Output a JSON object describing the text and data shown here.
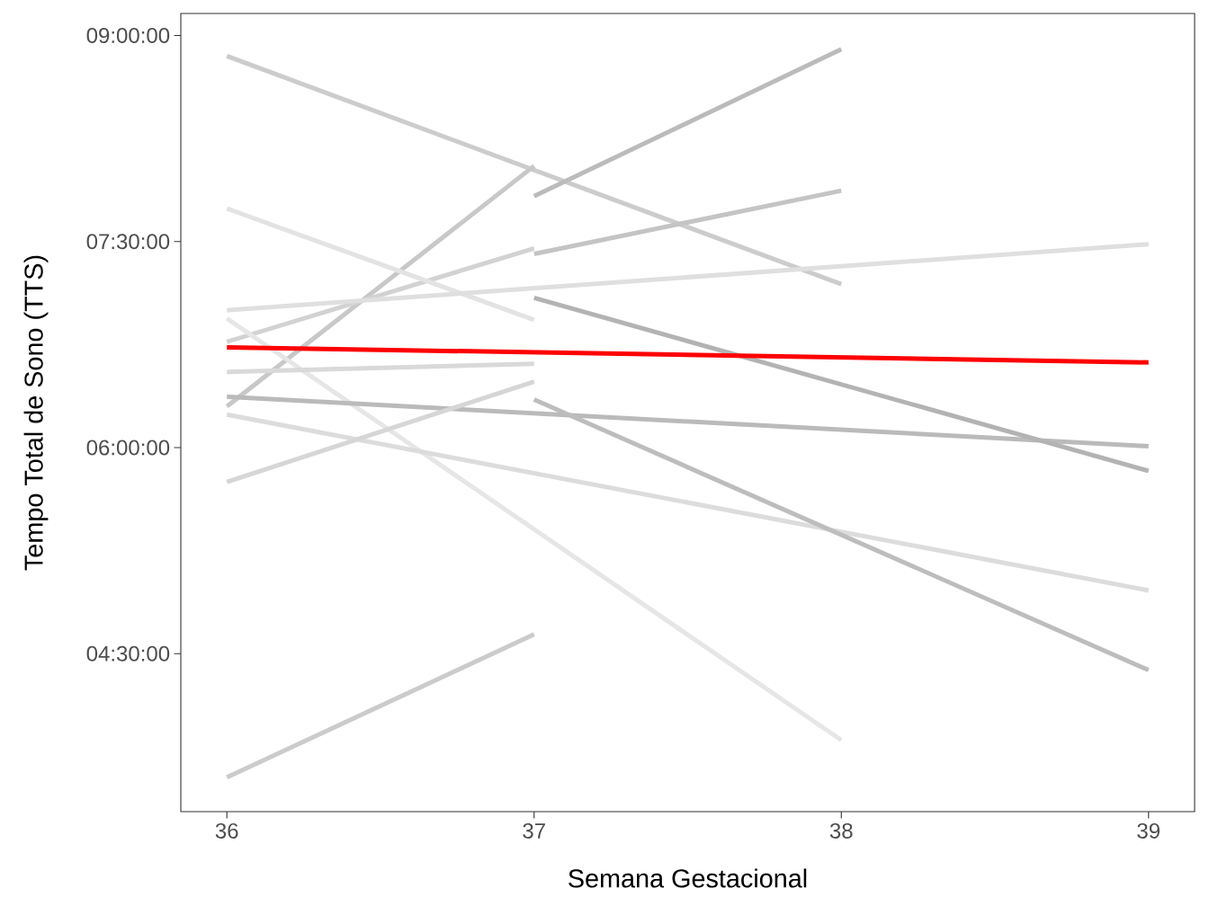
{
  "chart_data": {
    "type": "line",
    "xlabel": "Semana Gestacional",
    "ylabel": "Tempo Total de Sono (TTS)",
    "xlim": [
      35.85,
      39.15
    ],
    "ylim": [
      3.35,
      9.16
    ],
    "xticks": [
      36,
      37,
      38,
      39
    ],
    "yticks": [
      {
        "value": 4.5,
        "label": "04:30:00"
      },
      {
        "value": 6,
        "label": "06:00:00"
      },
      {
        "value": 7.5,
        "label": "07:30:00"
      },
      {
        "value": 9,
        "label": "09:00:00"
      }
    ],
    "series": [
      {
        "x": [
          36,
          38
        ],
        "values": [
          8.85,
          7.19
        ],
        "color": "#cccccc"
      },
      {
        "x": [
          36,
          37
        ],
        "values": [
          6.3,
          8.05
        ],
        "color": "#c8c8c8"
      },
      {
        "x": [
          37,
          38
        ],
        "values": [
          7.83,
          8.9
        ],
        "color": "#bbbbbb"
      },
      {
        "x": [
          37,
          38
        ],
        "values": [
          7.41,
          7.87
        ],
        "color": "#c4c4c4"
      },
      {
        "x": [
          36,
          37
        ],
        "values": [
          6.77,
          7.45
        ],
        "color": "#d2d2d2"
      },
      {
        "x": [
          36,
          37
        ],
        "values": [
          7.74,
          6.93
        ],
        "color": "#e3e3e3"
      },
      {
        "x": [
          36,
          39
        ],
        "values": [
          7.0,
          7.48
        ],
        "color": "#dfdfdf"
      },
      {
        "x": [
          36,
          38
        ],
        "values": [
          6.94,
          3.87
        ],
        "color": "#e6e6e6"
      },
      {
        "x": [
          36,
          37
        ],
        "values": [
          6.55,
          6.61
        ],
        "color": "#d9d9d9"
      },
      {
        "x": [
          36,
          39
        ],
        "values": [
          6.37,
          6.01
        ],
        "color": "#bababa"
      },
      {
        "x": [
          36,
          39
        ],
        "values": [
          6.24,
          4.96
        ],
        "color": "#dcdcdc"
      },
      {
        "x": [
          36,
          37
        ],
        "values": [
          5.75,
          6.48
        ],
        "color": "#d6d6d6"
      },
      {
        "x": [
          37,
          39
        ],
        "values": [
          7.09,
          5.83
        ],
        "color": "#b3b3b3"
      },
      {
        "x": [
          37,
          39
        ],
        "values": [
          6.35,
          4.38
        ],
        "color": "#bdbdbd"
      },
      {
        "x": [
          36,
          37
        ],
        "values": [
          3.6,
          4.64
        ],
        "color": "#cbcbcb"
      },
      {
        "x": [
          36,
          39
        ],
        "values": [
          6.73,
          6.62
        ],
        "color": "#ff0000"
      }
    ]
  }
}
